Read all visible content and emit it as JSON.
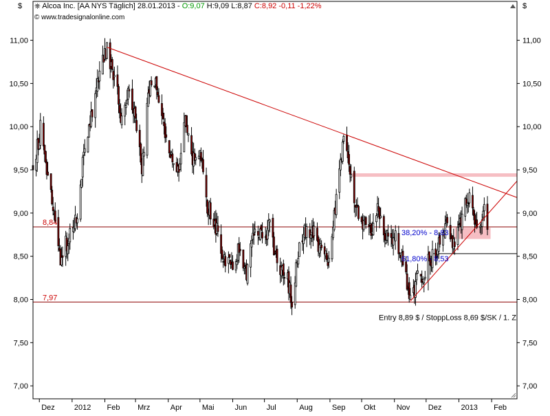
{
  "header": {
    "instrument": "Alcoa Inc. [AA NYS  Täglich] 28.01.2013 - ",
    "open": "O:9,07",
    "high_low": " H:9,09 L:8,87 ",
    "close_change": "C:8,92 -0,11 -1,22%",
    "website": "www.tradesignalonline.com",
    "currency_left": "$",
    "currency_right": "$"
  },
  "colors": {
    "up": "#ffffff",
    "down": "#8b0000",
    "trendline": "#cc0000",
    "zone": "#f5b3b8",
    "open_text": "#009900",
    "close_text": "#cc0000",
    "fib_text": "#0000cc"
  },
  "chart_data": {
    "type": "candlestick",
    "title": "Alcoa Inc. [AA NYS  Täglich]",
    "ylim": [
      6.85,
      11.45
    ],
    "y_ticks": [
      "11,00",
      "10,50",
      "10,00",
      "9,50",
      "9,00",
      "8,50",
      "8,00",
      "7,50",
      "7,00"
    ],
    "y_tick_values": [
      11.0,
      10.5,
      10.0,
      9.5,
      9.0,
      8.5,
      8.0,
      7.5,
      7.0
    ],
    "x_ticks": [
      "Dez",
      "2012",
      "Feb",
      "Mrz",
      "Apr",
      "Mai",
      "Jun",
      "Jul",
      "Aug",
      "Sep",
      "Okt",
      "Nov",
      "Dez",
      "2013",
      "Feb"
    ],
    "x_tick_dates": [
      "2011-12-01",
      "2012-01-01",
      "2012-02-01",
      "2012-03-01",
      "2012-04-01",
      "2012-05-01",
      "2012-06-01",
      "2012-07-01",
      "2012-08-01",
      "2012-09-01",
      "2012-10-01",
      "2012-11-01",
      "2012-12-01",
      "2013-01-01",
      "2013-02-01"
    ],
    "x_range": [
      "2011-11-25",
      "2013-02-25"
    ],
    "path": [
      [
        "2011-11-25",
        9.45
      ],
      [
        "2011-12-02",
        10.0
      ],
      [
        "2011-12-08",
        9.5
      ],
      [
        "2011-12-15",
        8.95
      ],
      [
        "2011-12-21",
        8.5
      ],
      [
        "2011-12-29",
        8.7
      ],
      [
        "2012-01-05",
        8.9
      ],
      [
        "2012-01-11",
        9.6
      ],
      [
        "2012-01-19",
        10.1
      ],
      [
        "2012-01-28",
        10.7
      ],
      [
        "2012-02-03",
        10.9
      ],
      [
        "2012-02-10",
        10.6
      ],
      [
        "2012-02-17",
        10.05
      ],
      [
        "2012-02-24",
        10.5
      ],
      [
        "2012-03-02",
        10.0
      ],
      [
        "2012-03-07",
        9.55
      ],
      [
        "2012-03-15",
        10.55
      ],
      [
        "2012-03-20",
        10.5
      ],
      [
        "2012-03-28",
        9.95
      ],
      [
        "2012-04-04",
        9.7
      ],
      [
        "2012-04-10",
        9.45
      ],
      [
        "2012-04-17",
        10.1
      ],
      [
        "2012-04-25",
        9.6
      ],
      [
        "2012-05-01",
        9.75
      ],
      [
        "2012-05-08",
        9.1
      ],
      [
        "2012-05-15",
        8.9
      ],
      [
        "2012-05-22",
        8.5
      ],
      [
        "2012-05-31",
        8.4
      ],
      [
        "2012-06-07",
        8.6
      ],
      [
        "2012-06-14",
        8.3
      ],
      [
        "2012-06-22",
        8.8
      ],
      [
        "2012-06-29",
        8.7
      ],
      [
        "2012-07-06",
        8.85
      ],
      [
        "2012-07-13",
        8.4
      ],
      [
        "2012-07-20",
        8.35
      ],
      [
        "2012-07-27",
        8.0
      ],
      [
        "2012-08-03",
        8.6
      ],
      [
        "2012-08-10",
        8.85
      ],
      [
        "2012-08-17",
        8.75
      ],
      [
        "2012-08-24",
        8.6
      ],
      [
        "2012-08-31",
        8.45
      ],
      [
        "2012-09-07",
        9.2
      ],
      [
        "2012-09-14",
        9.85
      ],
      [
        "2012-09-19",
        9.5
      ],
      [
        "2012-09-26",
        9.1
      ],
      [
        "2012-10-03",
        8.85
      ],
      [
        "2012-10-10",
        8.8
      ],
      [
        "2012-10-17",
        9.05
      ],
      [
        "2012-10-24",
        8.7
      ],
      [
        "2012-10-31",
        8.75
      ],
      [
        "2012-11-07",
        8.55
      ],
      [
        "2012-11-14",
        8.1
      ],
      [
        "2012-11-16",
        8.0
      ],
      [
        "2012-11-23",
        8.25
      ],
      [
        "2012-11-30",
        8.35
      ],
      [
        "2012-12-07",
        8.5
      ],
      [
        "2012-12-14",
        8.65
      ],
      [
        "2012-12-21",
        8.85
      ],
      [
        "2012-12-28",
        8.55
      ],
      [
        "2013-01-04",
        9.0
      ],
      [
        "2013-01-11",
        9.25
      ],
      [
        "2013-01-16",
        8.95
      ],
      [
        "2013-01-22",
        8.9
      ],
      [
        "2013-01-25",
        9.05
      ],
      [
        "2013-01-28",
        8.92
      ]
    ],
    "horizontal_lines": [
      {
        "value": 8.84,
        "label": "8,84"
      },
      {
        "value": 7.97,
        "label": "7,97"
      },
      {
        "value": 8.53,
        "label": ""
      }
    ],
    "trend_lines": [
      {
        "from": [
          "2012-02-03",
          10.92
        ],
        "to": [
          "2013-02-25",
          9.18
        ]
      },
      {
        "from": [
          "2012-11-16",
          7.98
        ],
        "to": [
          "2013-02-25",
          9.37
        ]
      }
    ],
    "zones": [
      {
        "from": "2012-09-21",
        "to": "2013-02-25",
        "low": 9.42,
        "high": 9.46
      },
      {
        "from": "2012-12-28",
        "to": "2013-01-31",
        "low": 8.7,
        "high": 8.83
      }
    ],
    "annotations": {
      "fib_38": "38,20% - 8,83",
      "fib_61": "61,80% - 8,53",
      "entry": "Entry 8,89 $ / StoppLoss 8,69 $/SK / 1. Z"
    },
    "grid": false
  }
}
